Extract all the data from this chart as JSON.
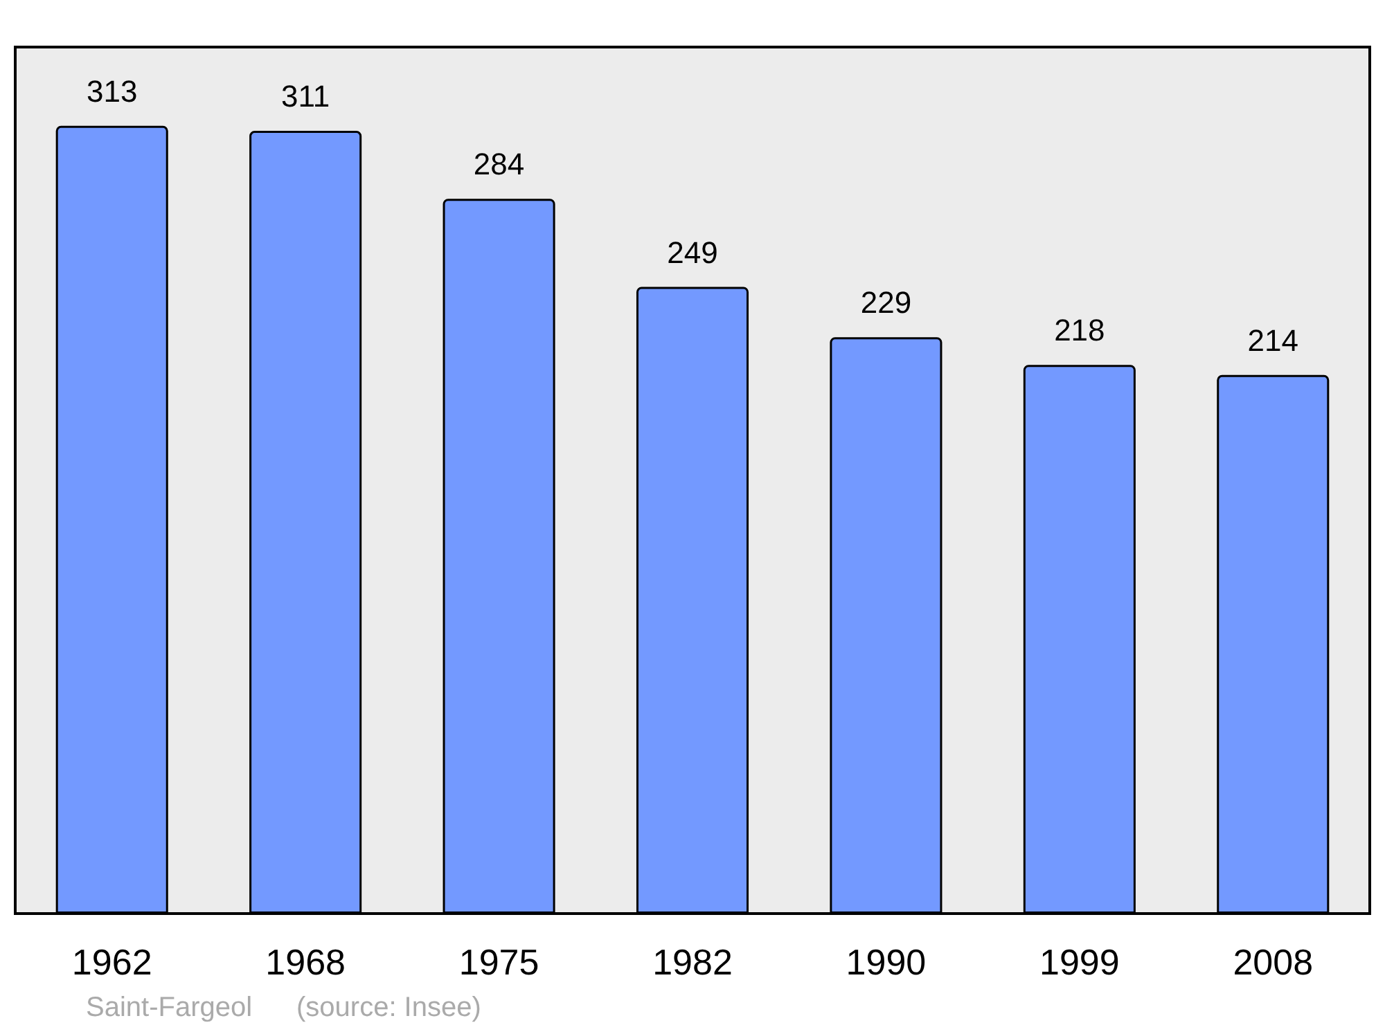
{
  "chart_data": {
    "type": "bar",
    "categories": [
      "1962",
      "1968",
      "1975",
      "1982",
      "1990",
      "1999",
      "2008"
    ],
    "values": [
      313,
      311,
      284,
      249,
      229,
      218,
      214
    ],
    "color": "#7399ff",
    "data_labels": true,
    "grid": false,
    "annotations": [
      "Saint-Fargeol",
      "(source: Insee)"
    ]
  }
}
